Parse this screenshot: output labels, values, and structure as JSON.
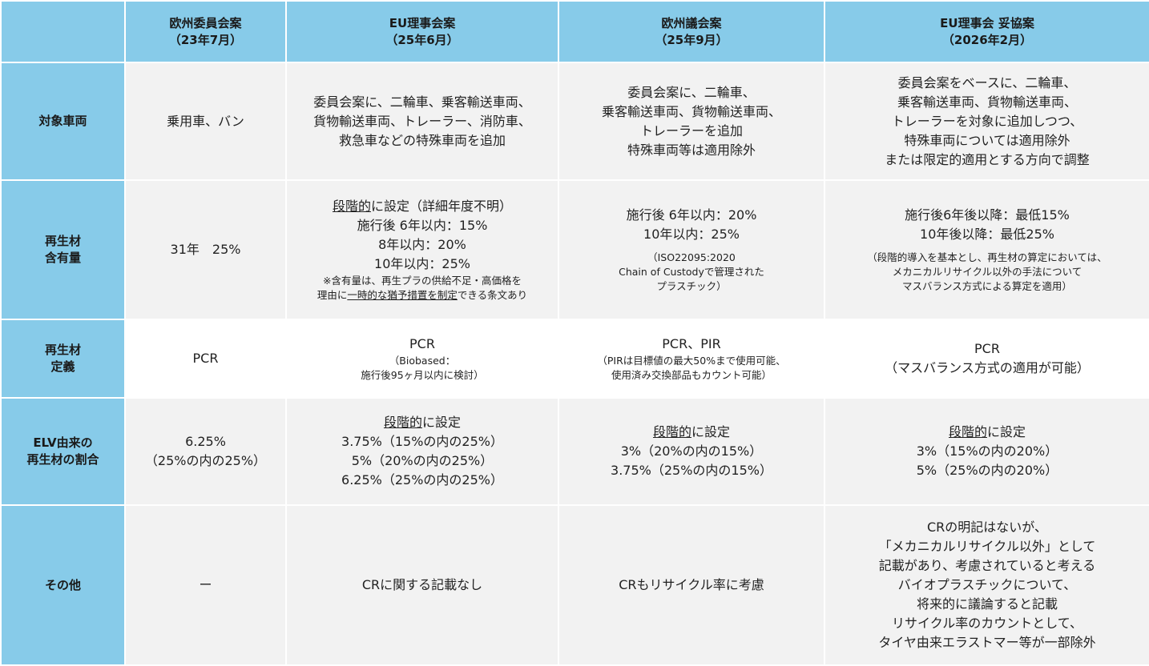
{
  "header": {
    "columns": [
      [
        "欧州委員会案",
        "（23年7月）"
      ],
      [
        "EU理事会案",
        "（25年6月）"
      ],
      [
        "欧州議会案",
        "（25年9月）"
      ],
      [
        "EU理事会 妥協案",
        "（2026年2月）"
      ]
    ]
  },
  "rows": [
    {
      "label": [
        "対象車両"
      ],
      "cells": [
        {
          "lines": [
            "乗用車、バン"
          ]
        },
        {
          "lines": [
            "委員会案に、二輪車、乗客輸送車両、",
            "貨物輸送車両、トレーラー、消防車、",
            "救急車などの特殊車両を追加"
          ]
        },
        {
          "lines": [
            "委員会案に、二輪車、",
            "乗客輸送車両、貨物輸送車両、",
            "トレーラーを追加",
            "特殊車両等は適用除外"
          ]
        },
        {
          "lines": [
            "委員会案をベースに、二輪車、",
            "乗客輸送車両、貨物輸送車両、",
            "トレーラーを対象に追加しつつ、",
            "特殊車両については適用除外",
            "または限定的適用とする方向で調整"
          ]
        }
      ]
    },
    {
      "label": [
        "再生材",
        "含有量"
      ],
      "cells": [
        {
          "lines": [
            "31年　25%"
          ]
        },
        {
          "lines": [
            [
              {
                "underline": "段階的"
              },
              "に設定（詳細年度不明）"
            ],
            "施行後 6年以内：15%",
            "8年以内：20%",
            "10年以内：25%"
          ],
          "notes": [
            "※含有量は、再生プラの供給不足・高価格を",
            [
              "理由に",
              {
                "underline": "一時的な猶予措置を制定"
              },
              "できる条文あり"
            ]
          ]
        },
        {
          "lines": [
            "施行後 6年以内：20%",
            "10年以内：25%"
          ],
          "notes": [
            "（ISO22095:2020",
            "Chain of Custodyで管理された",
            "プラスチック）"
          ]
        },
        {
          "lines": [
            "施行後6年後以降：最低15%",
            "10年後以降：最低25%"
          ],
          "notes": [
            "（段階的導入を基本とし、再生材の算定においては、",
            "メカニカルリサイクル以外の手法について",
            "マスバランス方式による算定を適用）"
          ]
        }
      ]
    },
    {
      "label": [
        "再生材",
        "定義"
      ],
      "cells": [
        {
          "lines": [
            "PCR"
          ]
        },
        {
          "lines": [
            "PCR"
          ],
          "notes": [
            "（Biobased：",
            "施行後95ヶ月以内に検討）"
          ]
        },
        {
          "lines": [
            "PCR、PIR"
          ],
          "notes": [
            "（PIRは目標値の最大50%まで使用可能、",
            "使用済み交換部品もカウント可能）"
          ]
        },
        {
          "lines": [
            "PCR",
            "（マスバランス方式の適用が可能）"
          ]
        }
      ]
    },
    {
      "label": [
        "ELV由来の",
        "再生材の割合"
      ],
      "cells": [
        {
          "lines": [
            "6.25%",
            "（25%の内の25%）"
          ]
        },
        {
          "lines": [
            [
              {
                "underline": "段階的"
              },
              "に設定"
            ],
            "3.75%（15%の内の25%）",
            "5%（20%の内の25%）",
            "6.25%（25%の内の25%）"
          ]
        },
        {
          "lines": [
            [
              {
                "underline": "段階的"
              },
              "に設定"
            ],
            "3%（20%の内の15%）",
            "3.75%（25%の内の15%）"
          ]
        },
        {
          "lines": [
            [
              {
                "underline": "段階的"
              },
              "に設定"
            ],
            "3%（15%の内の20%）",
            "5%（25%の内の20%）"
          ]
        }
      ]
    },
    {
      "label": [
        "その他"
      ],
      "cells": [
        {
          "lines": [
            "ー"
          ]
        },
        {
          "lines": [
            "CRに関する記載なし"
          ]
        },
        {
          "lines": [
            "CRもリサイクル率に考慮"
          ]
        },
        {
          "lines": [
            "CRの明記はないが、",
            "「メカニカルリサイクル以外」として",
            "記載があり、考慮されていると考える",
            "バイオプラスチックについて、",
            "将来的に議論すると記載",
            "リサイクル率のカウントとして、",
            "タイヤ由来エラストマー等が一部除外"
          ]
        }
      ]
    }
  ]
}
